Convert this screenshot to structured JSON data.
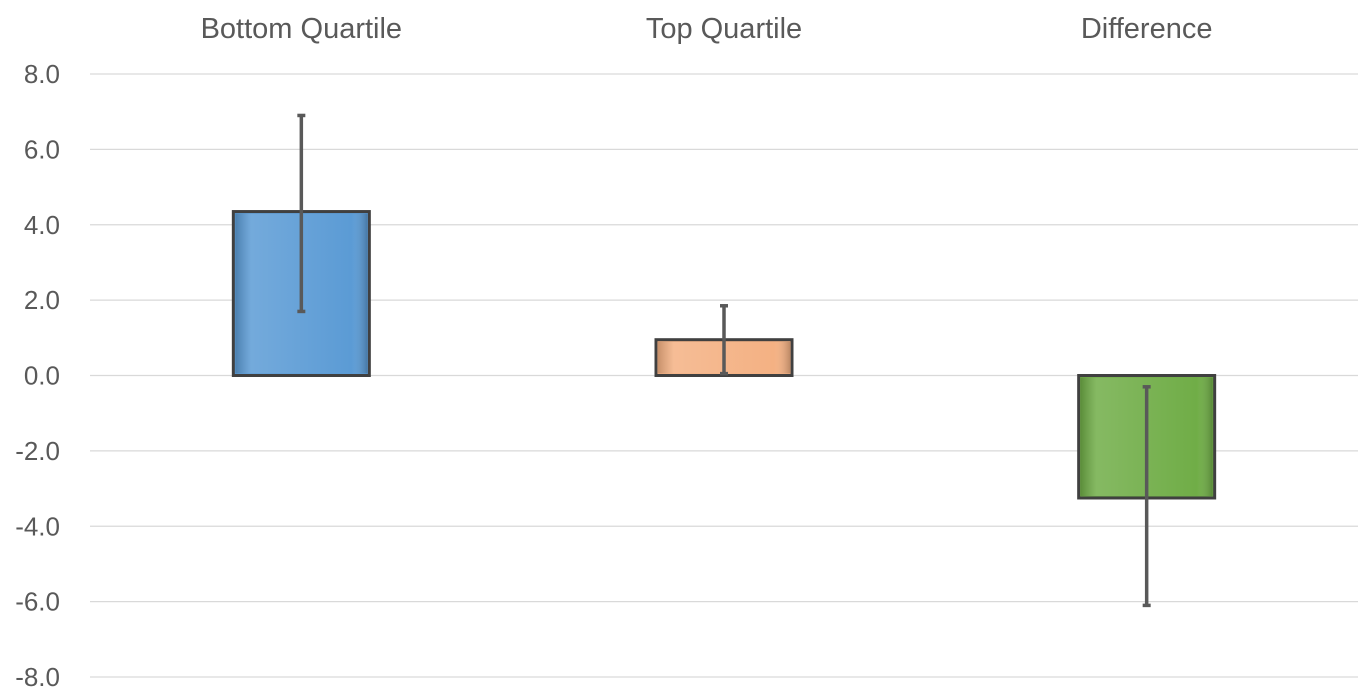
{
  "chart_data": {
    "type": "bar",
    "title": "",
    "xlabel": "",
    "ylabel": "",
    "categories": [
      "Bottom Quartile",
      "Top Quartile",
      "Difference"
    ],
    "values": [
      4.35,
      0.95,
      -3.25
    ],
    "error_bars": [
      {
        "low": 1.7,
        "high": 6.9
      },
      {
        "low": 0.05,
        "high": 1.85
      },
      {
        "low": -6.1,
        "high": -0.3
      }
    ],
    "colors": [
      "#5b9bd5",
      "#f4b183",
      "#70ad47"
    ],
    "ylim": [
      -8,
      8
    ],
    "yticks": [
      8,
      6,
      4,
      2,
      0,
      -2,
      -4,
      -6,
      -8
    ],
    "ytick_labels": [
      "8.0",
      "6.0",
      "4.0",
      "2.0",
      "0.0",
      "-2.0",
      "-4.0",
      "-6.0",
      "-8.0"
    ],
    "category_axis_position": "top",
    "grid": true,
    "legend": "none"
  }
}
